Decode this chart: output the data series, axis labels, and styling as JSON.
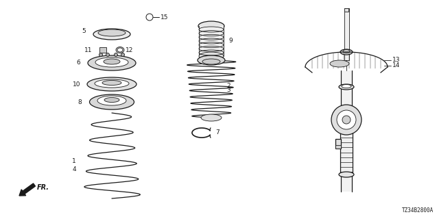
{
  "bg_color": "#ffffff",
  "line_color": "#1a1a1a",
  "diagram_code": "TZ34B2800A",
  "fig_w": 6.4,
  "fig_h": 3.2,
  "dpi": 100
}
